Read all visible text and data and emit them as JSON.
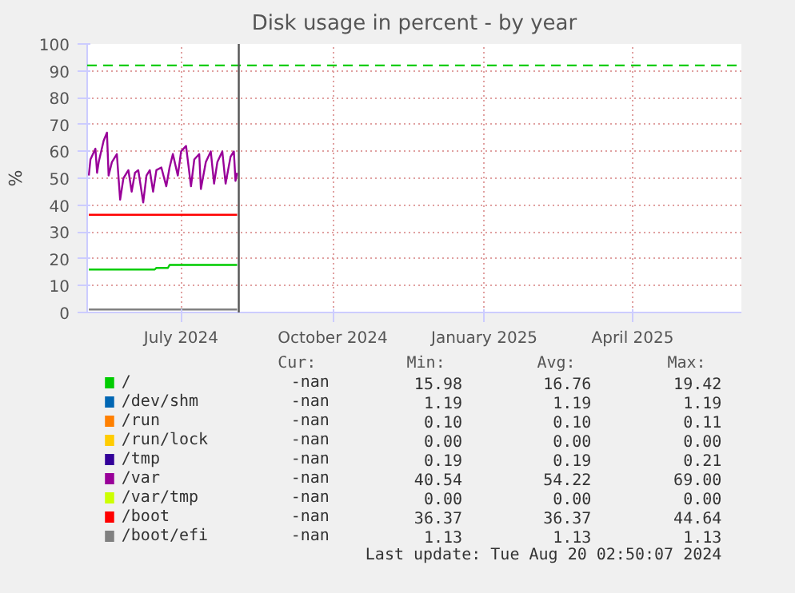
{
  "chart_data": {
    "type": "line",
    "title": "Disk usage in percent - by year",
    "ylabel": "%",
    "xlim": [
      "2024-05-05",
      "2025-06-06"
    ],
    "xticks": [
      {
        "value": "2024-07-01",
        "label": "July 2024"
      },
      {
        "value": "2024-10-01",
        "label": "October 2024"
      },
      {
        "value": "2025-01-01",
        "label": "January 2025"
      },
      {
        "value": "2025-04-01",
        "label": "April 2025"
      }
    ],
    "ylim": [
      0,
      100
    ],
    "yticks": [
      0,
      10,
      20,
      30,
      40,
      50,
      60,
      70,
      80,
      90,
      100
    ],
    "grid": true,
    "legend": "bottom",
    "marker": "none",
    "line_style": "solid",
    "series": [
      {
        "name": "/",
        "color": "#00cc00",
        "x": [
          "2024-05-06",
          "2024-06-15",
          "2024-06-16",
          "2024-06-23",
          "2024-06-24",
          "2024-08-04"
        ],
        "values": [
          16.0,
          16.0,
          16.6,
          16.6,
          17.7,
          17.7
        ]
      },
      {
        "name": "/dev/shm",
        "color": "#0066b3"
      },
      {
        "name": "/run",
        "color": "#ff8000"
      },
      {
        "name": "/run/lock",
        "color": "#ffcc00"
      },
      {
        "name": "/tmp",
        "color": "#330099"
      },
      {
        "name": "/var",
        "color": "#990099",
        "x": [
          "2024-05-06",
          "2024-05-07",
          "2024-05-10",
          "2024-05-11",
          "2024-05-12",
          "2024-05-15",
          "2024-05-17",
          "2024-05-18",
          "2024-05-20",
          "2024-05-23",
          "2024-05-25",
          "2024-05-27",
          "2024-05-30",
          "2024-06-01",
          "2024-06-03",
          "2024-06-05",
          "2024-06-08",
          "2024-06-10",
          "2024-06-12",
          "2024-06-14",
          "2024-06-16",
          "2024-06-19",
          "2024-06-22",
          "2024-06-24",
          "2024-06-26",
          "2024-06-29",
          "2024-07-01",
          "2024-07-04",
          "2024-07-07",
          "2024-07-09",
          "2024-07-12",
          "2024-07-13",
          "2024-07-16",
          "2024-07-19",
          "2024-07-21",
          "2024-07-23",
          "2024-07-26",
          "2024-07-28",
          "2024-07-31",
          "2024-08-02",
          "2024-08-03",
          "2024-08-04"
        ],
        "values": [
          51,
          57,
          61,
          52,
          56,
          64,
          67,
          51,
          56,
          59,
          42,
          50,
          53,
          45,
          52,
          53,
          41,
          51,
          53,
          45,
          53,
          54,
          47,
          54,
          59,
          51,
          60,
          62,
          47,
          57,
          59,
          46,
          56,
          60,
          48,
          56,
          60,
          48,
          58,
          60,
          49,
          52
        ]
      },
      {
        "name": "/var/tmp",
        "color": "#ccff00"
      },
      {
        "name": "/boot",
        "color": "#ff0000",
        "x": [
          "2024-05-06",
          "2024-08-04"
        ],
        "values": [
          36.4,
          36.4
        ]
      },
      {
        "name": "/boot/efi",
        "color": "#808080",
        "x": [
          "2024-05-06",
          "2024-08-04"
        ],
        "values": [
          1.1,
          1.1
        ]
      }
    ],
    "ref_lines": [
      {
        "axis": "y",
        "value": 92,
        "color": "#00cc00",
        "line_style": "dashed"
      },
      {
        "axis": "x",
        "value": "2024-08-05",
        "color": "#555555",
        "line_style": "solid"
      }
    ],
    "annotations": [
      "Cur:",
      "Min:",
      "Avg:",
      "Max:",
      "-nan",
      "15.98",
      "16.76",
      "19.42",
      "-nan",
      "1.19",
      "1.19",
      "1.19",
      "-nan",
      "0.10",
      "0.10",
      "0.11",
      "-nan",
      "0.00",
      "0.00",
      "0.00",
      "-nan",
      "0.19",
      "0.19",
      "0.21",
      "-nan",
      "40.54",
      "54.22",
      "69.00",
      "-nan",
      "0.00",
      "0.00",
      "0.00",
      "-nan",
      "36.37",
      "36.37",
      "44.64",
      "-nan",
      "1.13",
      "1.13",
      "1.13",
      "Last update: Tue Aug 20 02:50:07 2024"
    ]
  }
}
